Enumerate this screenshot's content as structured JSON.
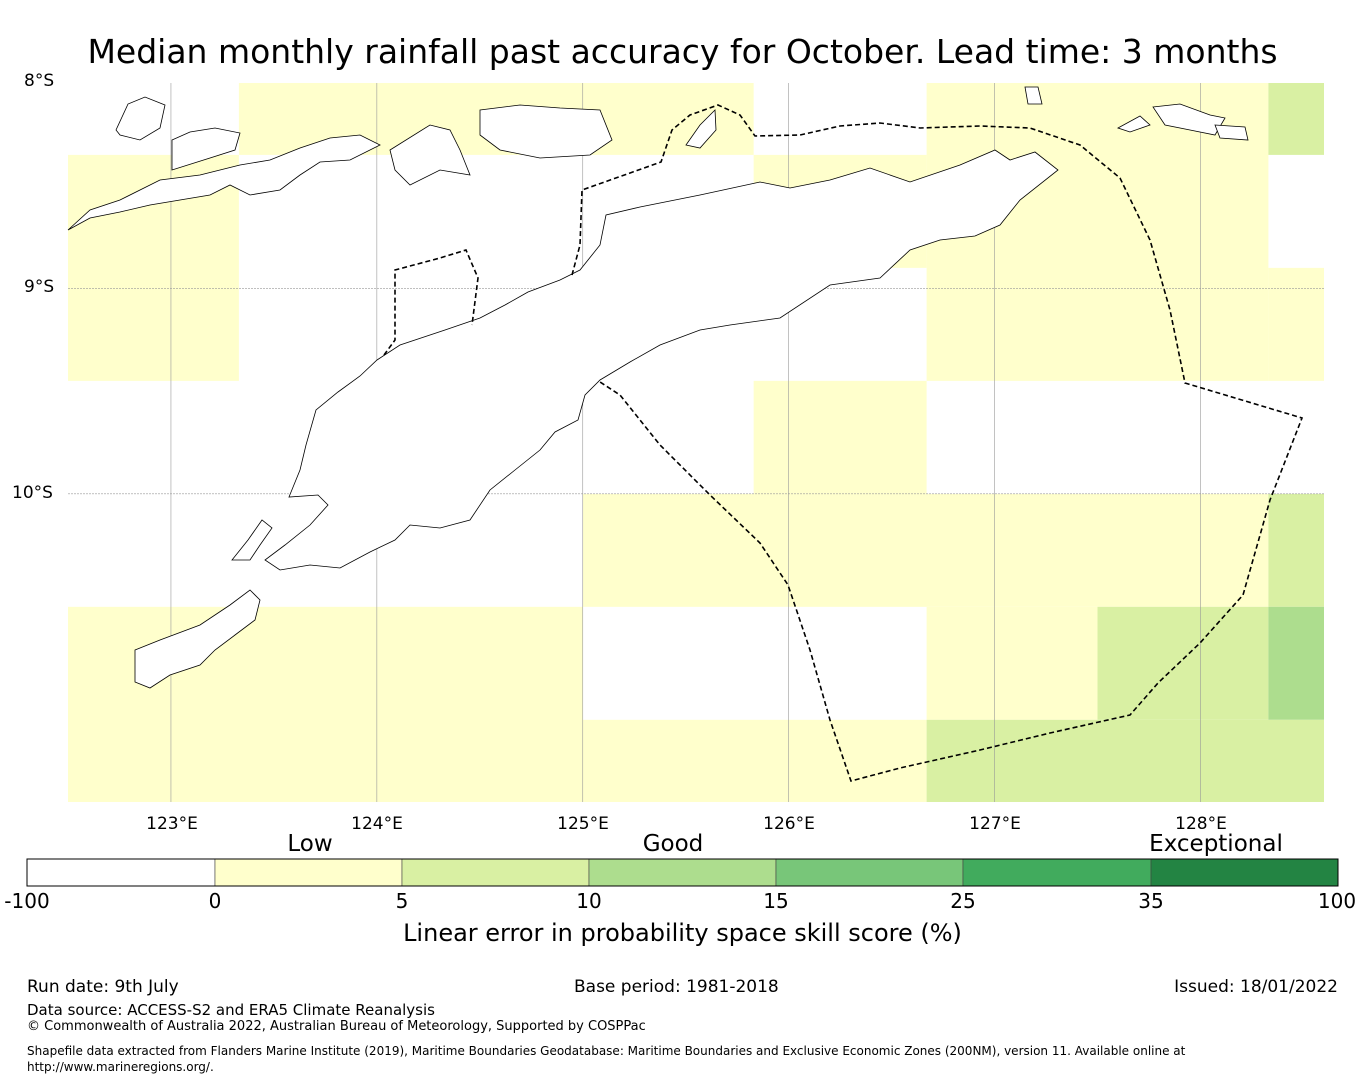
{
  "title": "Median monthly rainfall past accuracy for October. Lead time: 3 months",
  "map": {
    "lat_labels": [
      "8°S",
      "9°S",
      "10°S"
    ],
    "lon_labels": [
      "123°E",
      "124°E",
      "125°E",
      "126°E",
      "127°E",
      "128°E"
    ],
    "lon_extent": [
      122.5,
      128.6
    ],
    "lat_extent": [
      -8.0,
      -11.5
    ],
    "cells": [
      {
        "lon": [
          122.5,
          123.33
        ],
        "lat": [
          -8.35,
          -9.45
        ],
        "cat": "0-5"
      },
      {
        "lon": [
          123.33,
          125.83
        ],
        "lat": [
          -8.0,
          -8.35
        ],
        "cat": "0-5"
      },
      {
        "lon": [
          125.83,
          126.67
        ],
        "lat": [
          -8.35,
          -8.9
        ],
        "cat": "0-5"
      },
      {
        "lon": [
          126.67,
          128.33
        ],
        "lat": [
          -8.0,
          -9.45
        ],
        "cat": "0-5"
      },
      {
        "lon": [
          128.33,
          128.6
        ],
        "lat": [
          -8.0,
          -8.35
        ],
        "cat": "5-10"
      },
      {
        "lon": [
          128.33,
          128.6
        ],
        "lat": [
          -8.9,
          -9.45
        ],
        "cat": "0-5"
      },
      {
        "lon": [
          125.83,
          126.67
        ],
        "lat": [
          -9.45,
          -10.0
        ],
        "cat": "0-5"
      },
      {
        "lon": [
          125.0,
          128.33
        ],
        "lat": [
          -10.0,
          -10.55
        ],
        "cat": "0-5"
      },
      {
        "lon": [
          128.33,
          128.6
        ],
        "lat": [
          -10.0,
          -10.55
        ],
        "cat": "5-10"
      },
      {
        "lon": [
          122.5,
          125.0
        ],
        "lat": [
          -10.55,
          -11.5
        ],
        "cat": "0-5"
      },
      {
        "lon": [
          126.67,
          127.5
        ],
        "lat": [
          -10.55,
          -11.1
        ],
        "cat": "0-5"
      },
      {
        "lon": [
          127.5,
          128.33
        ],
        "lat": [
          -10.55,
          -11.1
        ],
        "cat": "5-10"
      },
      {
        "lon": [
          128.33,
          128.6
        ],
        "lat": [
          -10.55,
          -11.1
        ],
        "cat": "10-15"
      },
      {
        "lon": [
          125.0,
          126.67
        ],
        "lat": [
          -11.1,
          -11.5
        ],
        "cat": "0-5"
      },
      {
        "lon": [
          126.67,
          128.6
        ],
        "lat": [
          -11.1,
          -11.5
        ],
        "cat": "5-10"
      }
    ]
  },
  "legend": {
    "category_labels": [
      "Low",
      "Good",
      "Exceptional"
    ],
    "ticks": [
      "-100",
      "0",
      "5",
      "10",
      "15",
      "25",
      "35",
      "100"
    ],
    "colors": [
      "#ffffff",
      "#ffffcc",
      "#d9f0a3",
      "#addd8e",
      "#78c679",
      "#41ab5d",
      "#238443"
    ],
    "title": "Linear error in probability space skill score (%)"
  },
  "footer": {
    "run_date": "Run date: 9th July",
    "base_period": "Base period: 1981-2018",
    "issued": "Issued: 18/01/2022",
    "data_source": "Data source: ACCESS-S2 and ERA5 Climate Reanalysis",
    "copyright": "© Commonwealth of Australia 2022, Australian Bureau of Meteorology, Supported by COSPPac",
    "shapefile": "Shapefile data extracted from Flanders Marine Institute (2019), Maritime Boundaries Geodatabase: Maritime Boundaries and Exclusive Economic Zones (200NM), version 11. Available online at http://www.marineregions.org/."
  }
}
